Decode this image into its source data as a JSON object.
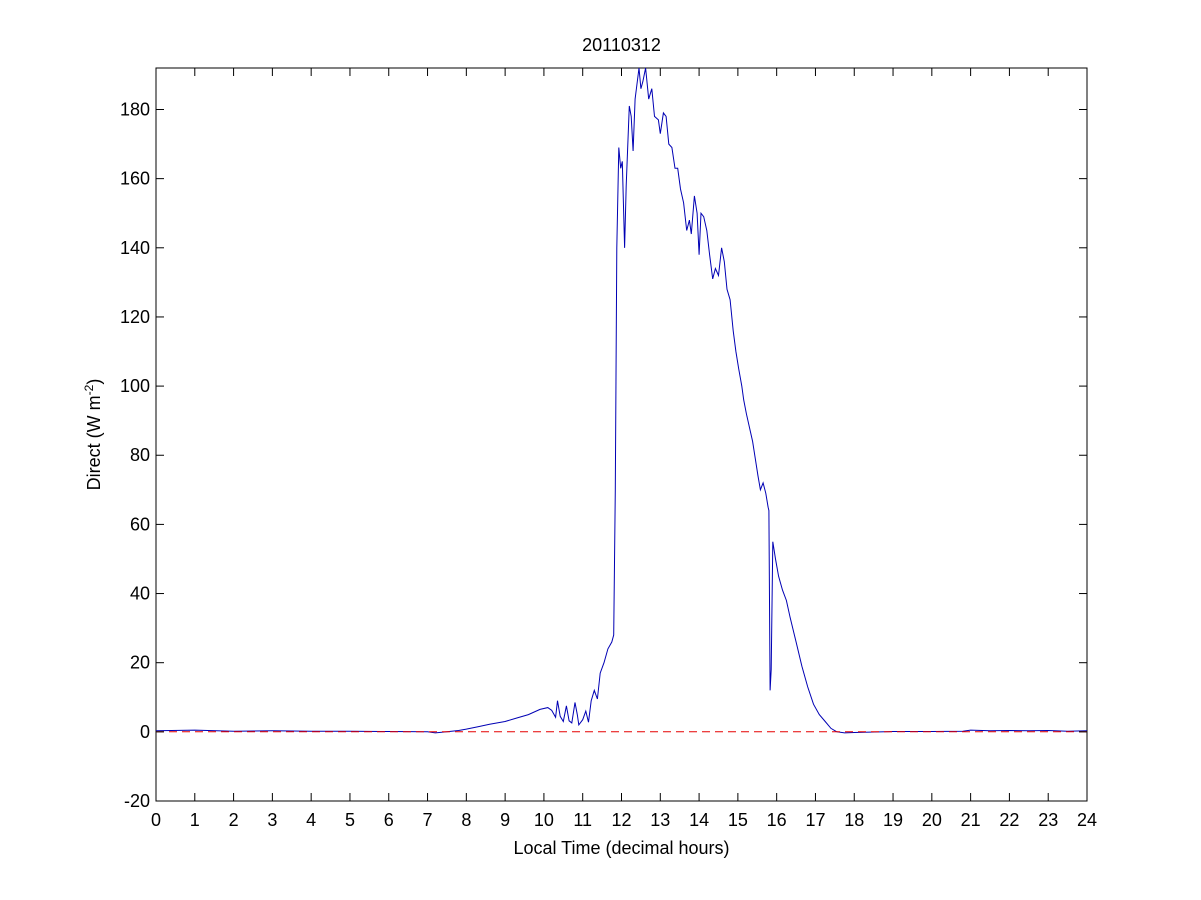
{
  "chart_data": {
    "type": "line",
    "title": "20110312",
    "xlabel": "Local Time (decimal hours)",
    "ylabel": {
      "text": "Direct (W m",
      "superscript": "-2",
      "suffix": ")"
    },
    "xlim": [
      0,
      24
    ],
    "ylim": [
      -20,
      192
    ],
    "x_ticks": [
      0,
      1,
      2,
      3,
      4,
      5,
      6,
      7,
      8,
      9,
      10,
      11,
      12,
      13,
      14,
      15,
      16,
      17,
      18,
      19,
      20,
      21,
      22,
      23,
      24
    ],
    "y_ticks": [
      -20,
      0,
      20,
      40,
      60,
      80,
      100,
      120,
      140,
      160,
      180
    ],
    "grid": false,
    "legend": "none",
    "colors": {
      "series": "#0000b4",
      "reference": "#e60000"
    },
    "series": [
      {
        "style": "solid",
        "color": "#0000b4",
        "points": [
          [
            0,
            0.3
          ],
          [
            1,
            0.5
          ],
          [
            2,
            0.2
          ],
          [
            3,
            0.3
          ],
          [
            4,
            0.2
          ],
          [
            5,
            0.2
          ],
          [
            6,
            0.1
          ],
          [
            7,
            0.0
          ],
          [
            7.2,
            -0.3
          ],
          [
            7.5,
            0.0
          ],
          [
            7.8,
            0.4
          ],
          [
            8,
            0.8
          ],
          [
            8.3,
            1.5
          ],
          [
            8.6,
            2.2
          ],
          [
            9,
            3.0
          ],
          [
            9.3,
            4.0
          ],
          [
            9.6,
            5.0
          ],
          [
            9.9,
            6.5
          ],
          [
            10.1,
            7.0
          ],
          [
            10.2,
            6.2
          ],
          [
            10.3,
            4.2
          ],
          [
            10.35,
            9.0
          ],
          [
            10.42,
            4.5
          ],
          [
            10.5,
            3.0
          ],
          [
            10.58,
            7.5
          ],
          [
            10.65,
            3.2
          ],
          [
            10.72,
            2.6
          ],
          [
            10.8,
            8.5
          ],
          [
            10.86,
            5.0
          ],
          [
            10.9,
            2.0
          ],
          [
            11.0,
            3.5
          ],
          [
            11.08,
            6.0
          ],
          [
            11.15,
            2.8
          ],
          [
            11.22,
            9.0
          ],
          [
            11.3,
            12.0
          ],
          [
            11.38,
            9.5
          ],
          [
            11.45,
            17.0
          ],
          [
            11.55,
            20.0
          ],
          [
            11.65,
            24.0
          ],
          [
            11.75,
            26.0
          ],
          [
            11.8,
            28.0
          ],
          [
            11.84,
            70.0
          ],
          [
            11.88,
            140.0
          ],
          [
            11.93,
            169.0
          ],
          [
            11.98,
            163.0
          ],
          [
            12.02,
            165.0
          ],
          [
            12.08,
            140.0
          ],
          [
            12.12,
            158.0
          ],
          [
            12.2,
            181.0
          ],
          [
            12.25,
            178.0
          ],
          [
            12.3,
            168.0
          ],
          [
            12.35,
            183.0
          ],
          [
            12.45,
            192.0
          ],
          [
            12.5,
            186.0
          ],
          [
            12.55,
            188.0
          ],
          [
            12.62,
            192.0
          ],
          [
            12.7,
            183.0
          ],
          [
            12.78,
            186.0
          ],
          [
            12.85,
            178.0
          ],
          [
            12.95,
            177.0
          ],
          [
            13.0,
            173.0
          ],
          [
            13.08,
            179.0
          ],
          [
            13.15,
            178.0
          ],
          [
            13.22,
            170.0
          ],
          [
            13.3,
            169.0
          ],
          [
            13.38,
            163.0
          ],
          [
            13.45,
            163.0
          ],
          [
            13.52,
            157.0
          ],
          [
            13.6,
            153.0
          ],
          [
            13.68,
            145.0
          ],
          [
            13.75,
            148.0
          ],
          [
            13.8,
            144.0
          ],
          [
            13.88,
            155.0
          ],
          [
            13.95,
            150.0
          ],
          [
            14.0,
            138.0
          ],
          [
            14.05,
            150.0
          ],
          [
            14.12,
            149.0
          ],
          [
            14.2,
            145.0
          ],
          [
            14.27,
            138.0
          ],
          [
            14.35,
            131.0
          ],
          [
            14.42,
            134.0
          ],
          [
            14.5,
            132.0
          ],
          [
            14.58,
            140.0
          ],
          [
            14.65,
            136.0
          ],
          [
            14.72,
            128.0
          ],
          [
            14.8,
            125.0
          ],
          [
            14.88,
            116.0
          ],
          [
            14.95,
            110.0
          ],
          [
            15.02,
            105.0
          ],
          [
            15.1,
            100.0
          ],
          [
            15.15,
            96.0
          ],
          [
            15.22,
            92.0
          ],
          [
            15.3,
            88.0
          ],
          [
            15.38,
            84.0
          ],
          [
            15.45,
            79.0
          ],
          [
            15.52,
            74.0
          ],
          [
            15.58,
            70.0
          ],
          [
            15.65,
            72.0
          ],
          [
            15.72,
            69.0
          ],
          [
            15.78,
            65.0
          ],
          [
            15.8,
            64.0
          ],
          [
            15.83,
            12.0
          ],
          [
            15.86,
            18.0
          ],
          [
            15.9,
            55.0
          ],
          [
            15.97,
            50.0
          ],
          [
            16.05,
            45.0
          ],
          [
            16.15,
            41.0
          ],
          [
            16.25,
            38.0
          ],
          [
            16.35,
            33.0
          ],
          [
            16.5,
            26.0
          ],
          [
            16.65,
            19.0
          ],
          [
            16.8,
            13.0
          ],
          [
            16.95,
            8.0
          ],
          [
            17.1,
            5.0
          ],
          [
            17.25,
            3.0
          ],
          [
            17.4,
            1.0
          ],
          [
            17.55,
            0.0
          ],
          [
            17.75,
            -0.3
          ],
          [
            18,
            -0.2
          ],
          [
            19,
            0.1
          ],
          [
            20,
            0.1
          ],
          [
            20.8,
            0.2
          ],
          [
            21,
            0.5
          ],
          [
            21.5,
            0.3
          ],
          [
            22,
            0.4
          ],
          [
            22.5,
            0.3
          ],
          [
            23,
            0.4
          ],
          [
            23.5,
            0.2
          ],
          [
            24,
            0.3
          ]
        ]
      },
      {
        "style": "dashed",
        "color": "#e60000",
        "points": [
          [
            0,
            0
          ],
          [
            24,
            0
          ]
        ]
      }
    ]
  }
}
